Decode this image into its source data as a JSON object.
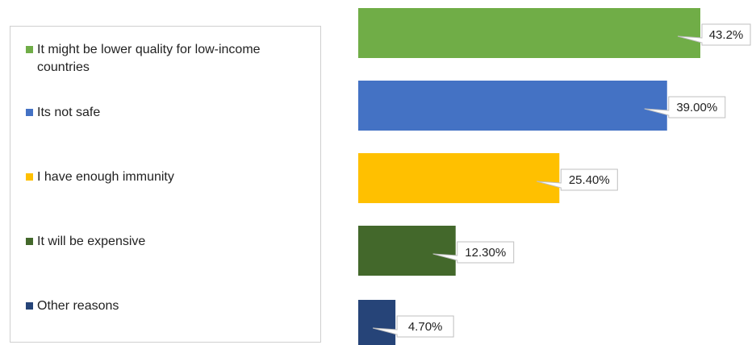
{
  "chart_data": {
    "type": "bar",
    "orientation": "horizontal",
    "categories": [
      "It might be lower quality for low-income countries",
      "Its not safe",
      "I have enough immunity",
      "It will be expensive",
      "Other reasons"
    ],
    "values": [
      43.2,
      39.0,
      25.4,
      12.3,
      4.7
    ],
    "data_labels": [
      "43.2%",
      "39.00%",
      "25.40%",
      "12.30%",
      "4.70%"
    ],
    "colors": [
      "#70AD47",
      "#4472C4",
      "#FFC000",
      "#43682B",
      "#264478"
    ],
    "xlim": [
      0,
      43.2
    ],
    "grid": false,
    "legend": "left",
    "title": "",
    "xlabel": "",
    "ylabel": ""
  }
}
